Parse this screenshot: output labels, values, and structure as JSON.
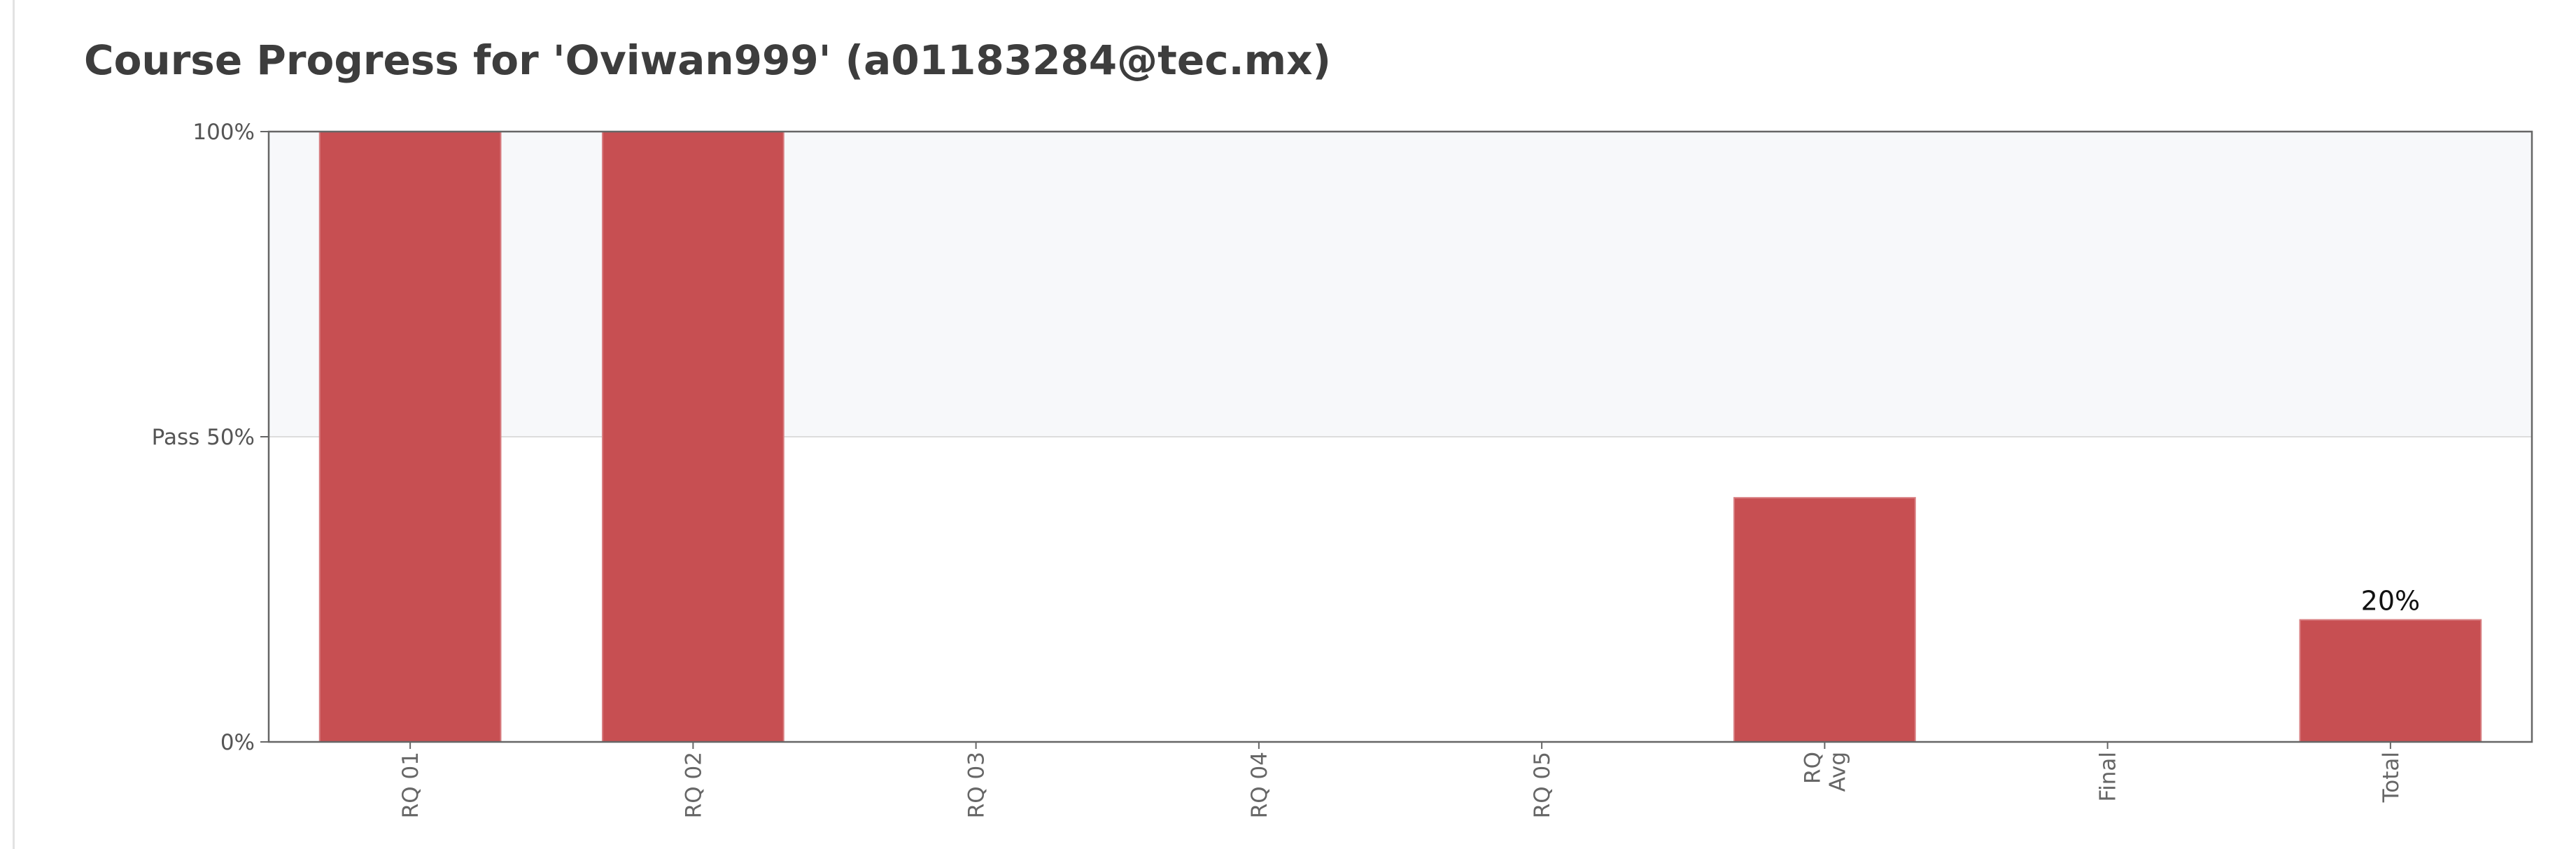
{
  "page": {
    "title": "Course Progress for 'Oviwan999' (a01183284@tec.mx)"
  },
  "chart_data": {
    "type": "bar",
    "title": "Course Progress for 'Oviwan999' (a01183284@tec.mx)",
    "categories": [
      [
        "RQ 01"
      ],
      [
        "RQ 02"
      ],
      [
        "RQ 03"
      ],
      [
        "RQ 04"
      ],
      [
        "RQ 05"
      ],
      [
        "RQ",
        "Avg"
      ],
      [
        "Final"
      ],
      [
        "Total"
      ]
    ],
    "values": [
      100,
      100,
      0,
      0,
      0,
      40,
      0,
      20
    ],
    "value_labels": [
      "",
      "",
      "",
      "",
      "",
      "",
      "",
      "20%"
    ],
    "ylim": [
      0,
      100
    ],
    "y_ticks": [
      {
        "value": 0,
        "label": "0%"
      },
      {
        "value": 50,
        "label": "Pass 50%"
      },
      {
        "value": 100,
        "label": "100%"
      }
    ],
    "pass_band": [
      50,
      100
    ],
    "grid": false,
    "colors": {
      "bar": "#c64b4f",
      "bar_edge": "#d87d80",
      "pass_band": "#f7f8fa",
      "axis_frame": "#666666",
      "threshold_line": "#dddddd"
    }
  }
}
